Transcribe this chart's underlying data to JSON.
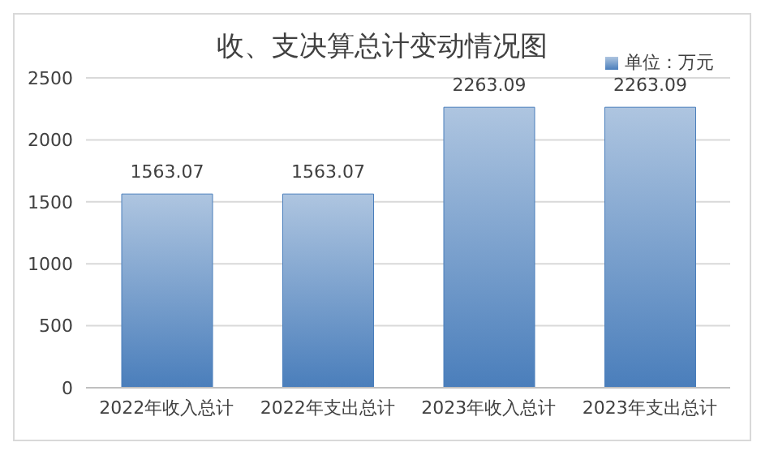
{
  "chart_data": {
    "type": "bar",
    "title": "收、支决算总计变动情况图",
    "categories": [
      "2022年收入总计",
      "2022年支出总计",
      "2023年收入总计",
      "2023年支出总计"
    ],
    "series": [
      {
        "name": "单位：万元",
        "color": "#4a7ebb",
        "values": [
          1563.07,
          1563.07,
          2263.09,
          2263.09
        ]
      }
    ],
    "ylim": [
      0,
      2500
    ],
    "yticks": [
      0,
      500,
      1000,
      1500,
      2000,
      2500
    ],
    "grid": "y",
    "legend": "top right",
    "data_labels": true
  }
}
